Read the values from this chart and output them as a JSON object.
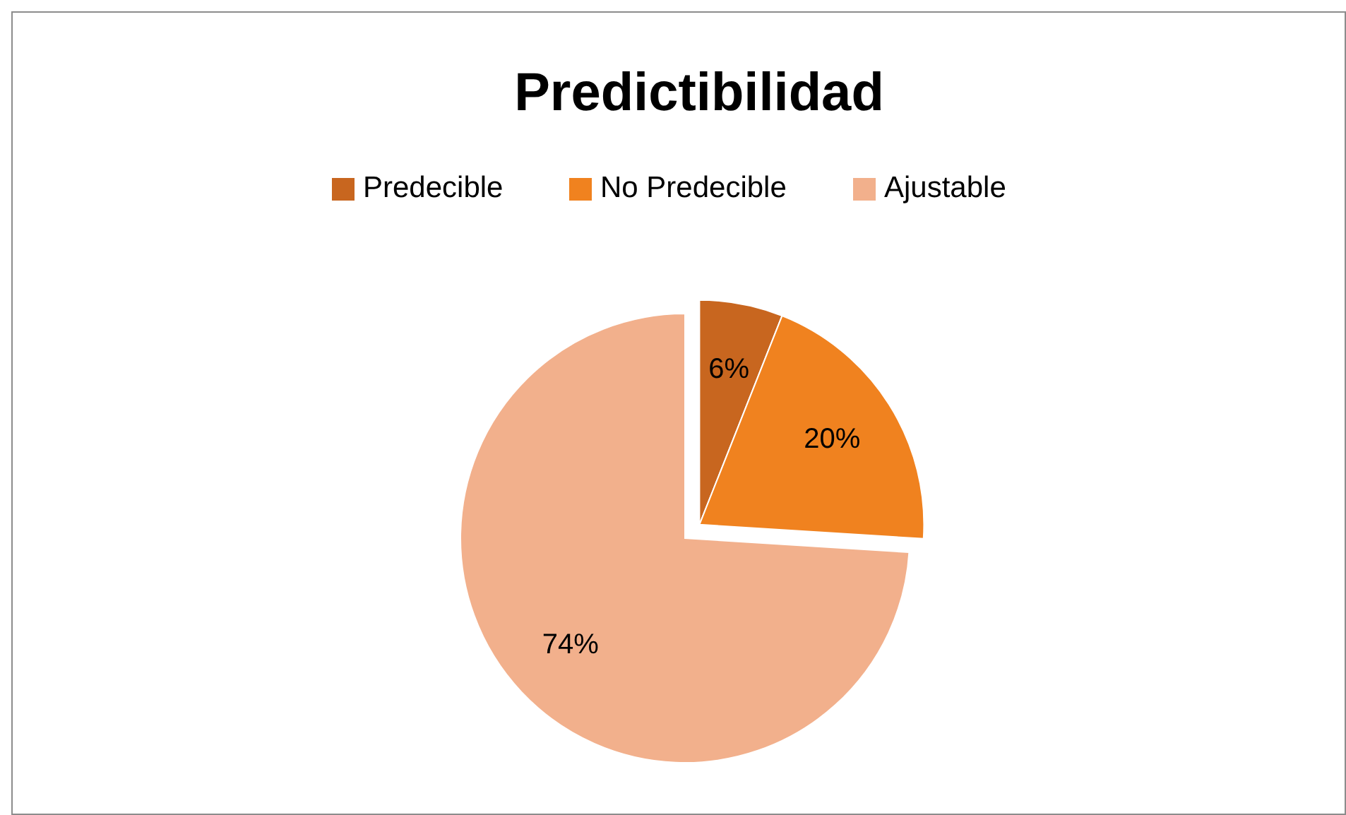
{
  "chart_data": {
    "type": "pie",
    "title": "Predictibilidad",
    "categories": [
      "Predecible",
      "No Predecible",
      "Ajustable"
    ],
    "values": [
      6,
      20,
      74
    ],
    "colors": [
      "#c8661f",
      "#f0821f",
      "#f2b08c"
    ],
    "value_labels": [
      "6%",
      "20%",
      "74%"
    ],
    "legend": "top"
  }
}
